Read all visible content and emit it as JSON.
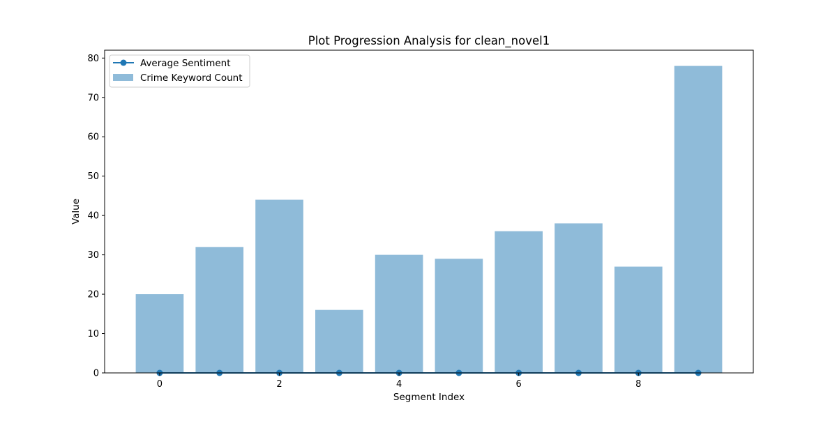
{
  "chart_data": {
    "type": "bar",
    "title": "Plot Progression Analysis for clean_novel1",
    "xlabel": "Segment Index",
    "ylabel": "Value",
    "x": [
      0,
      1,
      2,
      3,
      4,
      5,
      6,
      7,
      8,
      9
    ],
    "xticks": [
      0,
      2,
      4,
      6,
      8
    ],
    "yticks": [
      0,
      10,
      20,
      30,
      40,
      50,
      60,
      70,
      80
    ],
    "xlim": [
      -0.92,
      9.92
    ],
    "ylim": [
      0,
      82
    ],
    "grid": false,
    "legend_position": "top-left",
    "series": [
      {
        "name": "Average Sentiment",
        "kind": "line",
        "marker": "circle",
        "color": "#1f77b4",
        "values": [
          0,
          0,
          0,
          0,
          0,
          0,
          0,
          0,
          0,
          0
        ]
      },
      {
        "name": "Crime Keyword Count",
        "kind": "bar",
        "color": "#1f77b4",
        "opacity": 0.5,
        "values": [
          20,
          32,
          44,
          16,
          30,
          29,
          36,
          38,
          27,
          78
        ]
      }
    ]
  }
}
